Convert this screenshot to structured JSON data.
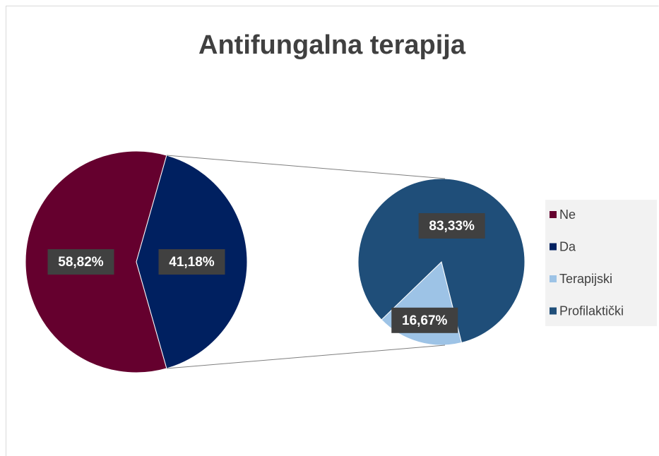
{
  "chart_data": {
    "type": "pie-of-pie",
    "title": "Antifungalna terapija",
    "categories": [
      "Ne",
      "Da"
    ],
    "values": [
      58.82,
      41.18
    ],
    "value_labels": [
      "58,82%",
      "41,18%"
    ],
    "colors": [
      "#65002e",
      "#002060"
    ],
    "secondary": {
      "categories": [
        "Terapijski",
        "Profilaktički"
      ],
      "values": [
        16.67,
        83.33
      ],
      "value_labels": [
        "16,67%",
        "83,33%"
      ],
      "colors": [
        "#9dc3e6",
        "#1f4e79"
      ]
    },
    "legend": "right"
  }
}
